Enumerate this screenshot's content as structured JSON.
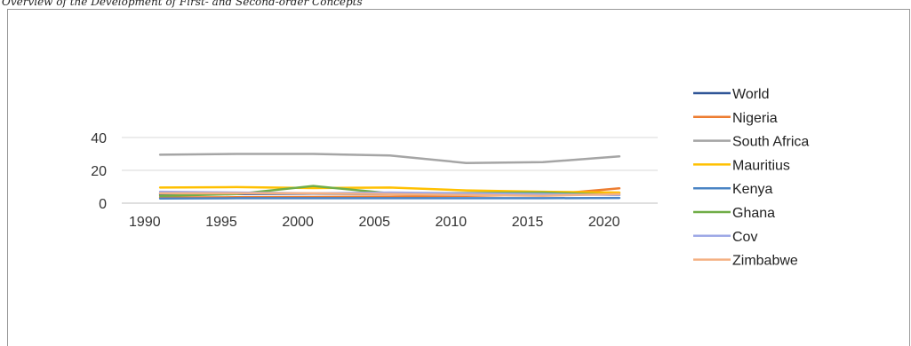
{
  "caption": "Overview of the Development of First- and Second-order Concepts",
  "chart_data": {
    "type": "line",
    "x": [
      1991,
      1996,
      2001,
      2006,
      2011,
      2016,
      2021
    ],
    "xticks": [
      1990,
      1995,
      2000,
      2005,
      2010,
      2015,
      2020
    ],
    "yticks": [
      0,
      20,
      40
    ],
    "ylim": [
      0,
      40
    ],
    "grid": true,
    "legend": "right",
    "series": [
      {
        "name": "World",
        "color": "#2f5597",
        "values": [
          5.5,
          5.5,
          5.8,
          5.5,
          5.5,
          5.5,
          6.0
        ]
      },
      {
        "name": "Nigeria",
        "color": "#ed7d31",
        "values": [
          3.5,
          3.6,
          3.8,
          4.0,
          4.5,
          5.0,
          9.0
        ]
      },
      {
        "name": "South Africa",
        "color": "#a5a5a5",
        "values": [
          29.5,
          30.0,
          30.0,
          29.0,
          24.5,
          25.0,
          28.5
        ]
      },
      {
        "name": "Mauritius",
        "color": "#ffc000",
        "values": [
          9.5,
          9.8,
          9.2,
          9.5,
          7.8,
          7.0,
          6.5
        ]
      },
      {
        "name": "Kenya",
        "color": "#4a84c4",
        "values": [
          2.8,
          3.0,
          3.0,
          3.0,
          3.0,
          3.0,
          3.2
        ]
      },
      {
        "name": "Ghana",
        "color": "#70ad47",
        "values": [
          4.5,
          5.5,
          10.5,
          6.0,
          6.2,
          6.5,
          5.0
        ]
      },
      {
        "name": "Cov",
        "color": "#9ea8e6",
        "values": [
          7.0,
          6.5,
          6.0,
          6.5,
          6.0,
          5.5,
          5.0
        ]
      },
      {
        "name": "Zimbabwe",
        "color": "#f4b183",
        "values": [
          6.0,
          6.0,
          6.0,
          5.5,
          5.0,
          4.5,
          5.5
        ]
      }
    ]
  }
}
